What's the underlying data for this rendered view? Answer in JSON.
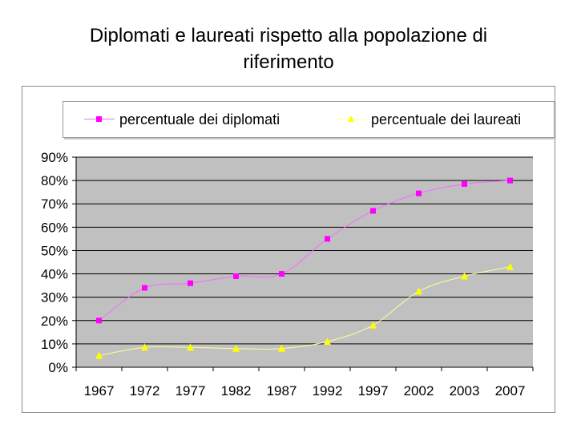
{
  "chart_data": {
    "type": "line",
    "title": "Diplomati e laureati rispetto alla popolazione di riferimento",
    "categories": [
      "1967",
      "1972",
      "1977",
      "1982",
      "1987",
      "1992",
      "1997",
      "2002",
      "2003",
      "2007"
    ],
    "series": [
      {
        "name": "percentuale dei diplomati",
        "color": "#ff00ff",
        "line_color": "#ff66ff",
        "marker": "square",
        "values": [
          20,
          34,
          36,
          39,
          40,
          55,
          67,
          74.5,
          78.5,
          80
        ]
      },
      {
        "name": "percentuale dei laureati",
        "color": "#ffff00",
        "line_color": "#ffff99",
        "marker": "triangle",
        "values": [
          5,
          8.5,
          8.5,
          8,
          8,
          11,
          18,
          32.5,
          39,
          43
        ]
      }
    ],
    "yticks": [
      "0%",
      "10%",
      "20%",
      "30%",
      "40%",
      "50%",
      "60%",
      "70%",
      "80%",
      "90%"
    ],
    "ylim": [
      0,
      90
    ],
    "xlabel": "",
    "ylabel": "",
    "grid": true,
    "legend_position": "top",
    "plot_background": "#c0c0c0"
  }
}
